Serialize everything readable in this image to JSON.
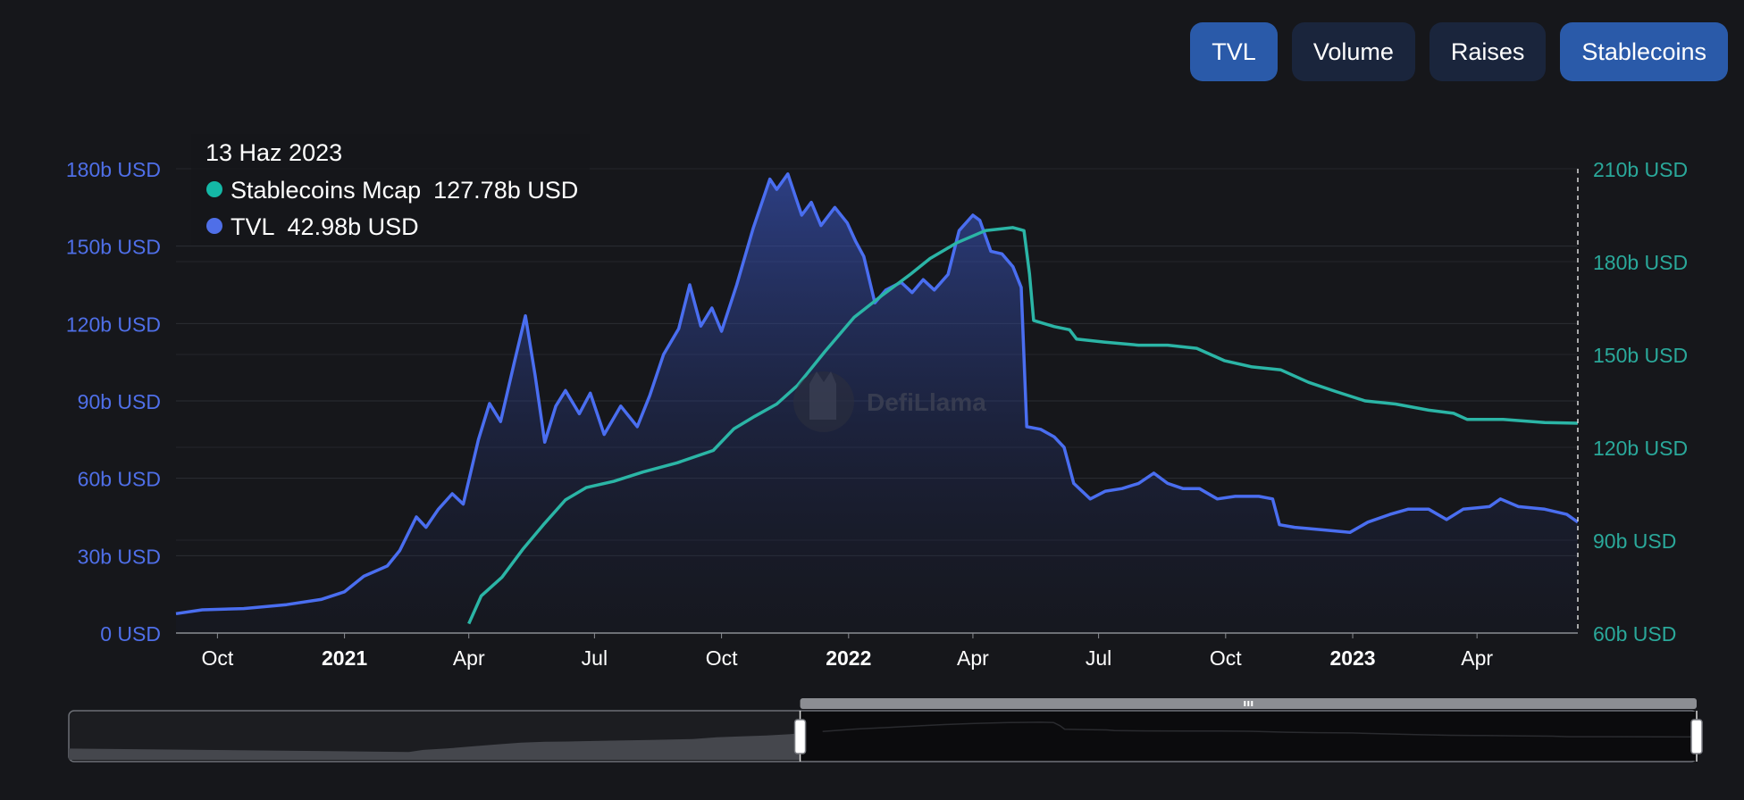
{
  "toggles": [
    {
      "label": "TVL",
      "active": true
    },
    {
      "label": "Volume",
      "active": false
    },
    {
      "label": "Raises",
      "active": false
    },
    {
      "label": "Stablecoins",
      "active": true
    }
  ],
  "watermark": "DefiLlama",
  "tooltip": {
    "date": "13 Haz 2023",
    "items": [
      {
        "name": "Stablecoins Mcap",
        "value": "127.78b USD",
        "color": "#14b8a6"
      },
      {
        "name": "TVL",
        "value": "42.98b USD",
        "color": "#4f6fe8"
      }
    ]
  },
  "colors": {
    "tvl": "#4a6ef0",
    "stablecoins": "#2bb5a6",
    "left_axis_text": "#4f6fe8",
    "right_axis_text": "#2aa89a",
    "button": "#1a253c",
    "button_active": "#2a5aa9"
  },
  "chart_data": {
    "type": "area",
    "x_range": [
      "2020-09-01",
      "2023-06-13"
    ],
    "x_ticks": [
      {
        "date": "2020-10-01",
        "label": "Oct",
        "bold": false
      },
      {
        "date": "2021-01-01",
        "label": "2021",
        "bold": true
      },
      {
        "date": "2021-04-01",
        "label": "Apr",
        "bold": false
      },
      {
        "date": "2021-07-01",
        "label": "Jul",
        "bold": false
      },
      {
        "date": "2021-10-01",
        "label": "Oct",
        "bold": false
      },
      {
        "date": "2022-01-01",
        "label": "2022",
        "bold": true
      },
      {
        "date": "2022-04-01",
        "label": "Apr",
        "bold": false
      },
      {
        "date": "2022-07-01",
        "label": "Jul",
        "bold": false
      },
      {
        "date": "2022-10-01",
        "label": "Oct",
        "bold": false
      },
      {
        "date": "2023-01-01",
        "label": "2023",
        "bold": true
      },
      {
        "date": "2023-04-01",
        "label": "Apr",
        "bold": false
      }
    ],
    "y_left": {
      "min": 0,
      "max": 180,
      "ticks": [
        0,
        30,
        60,
        90,
        120,
        150,
        180
      ],
      "tick_labels": [
        "0 USD",
        "30b USD",
        "60b USD",
        "90b USD",
        "120b USD",
        "150b USD",
        "180b USD"
      ]
    },
    "y_right": {
      "min": 60,
      "max": 210,
      "ticks": [
        60,
        90,
        120,
        150,
        180,
        210
      ],
      "tick_labels": [
        "60b USD",
        "90b USD",
        "120b USD",
        "150b USD",
        "180b USD",
        "210b USD"
      ]
    },
    "series": [
      {
        "name": "TVL",
        "axis": "left",
        "points": [
          [
            "2020-09-01",
            7.5
          ],
          [
            "2020-09-20",
            9
          ],
          [
            "2020-10-20",
            9.5
          ],
          [
            "2020-11-20",
            11
          ],
          [
            "2020-12-15",
            13
          ],
          [
            "2021-01-01",
            16
          ],
          [
            "2021-01-15",
            22
          ],
          [
            "2021-02-01",
            26
          ],
          [
            "2021-02-10",
            32
          ],
          [
            "2021-02-22",
            45
          ],
          [
            "2021-03-01",
            41
          ],
          [
            "2021-03-10",
            48
          ],
          [
            "2021-03-20",
            54
          ],
          [
            "2021-03-28",
            50
          ],
          [
            "2021-04-08",
            75
          ],
          [
            "2021-04-16",
            89
          ],
          [
            "2021-04-24",
            82
          ],
          [
            "2021-05-04",
            105
          ],
          [
            "2021-05-12",
            123
          ],
          [
            "2021-05-19",
            100
          ],
          [
            "2021-05-26",
            74
          ],
          [
            "2021-06-03",
            88
          ],
          [
            "2021-06-10",
            94
          ],
          [
            "2021-06-20",
            85
          ],
          [
            "2021-06-28",
            93
          ],
          [
            "2021-07-08",
            77
          ],
          [
            "2021-07-20",
            88
          ],
          [
            "2021-08-01",
            80
          ],
          [
            "2021-08-10",
            92
          ],
          [
            "2021-08-20",
            108
          ],
          [
            "2021-08-31",
            118
          ],
          [
            "2021-09-08",
            135
          ],
          [
            "2021-09-16",
            119
          ],
          [
            "2021-09-24",
            126
          ],
          [
            "2021-10-01",
            117
          ],
          [
            "2021-10-12",
            135
          ],
          [
            "2021-10-24",
            157
          ],
          [
            "2021-11-05",
            176
          ],
          [
            "2021-11-10",
            172
          ],
          [
            "2021-11-18",
            178
          ],
          [
            "2021-11-28",
            162
          ],
          [
            "2021-12-05",
            167
          ],
          [
            "2021-12-12",
            158
          ],
          [
            "2021-12-22",
            165
          ],
          [
            "2021-12-31",
            159
          ],
          [
            "2022-01-06",
            152
          ],
          [
            "2022-01-12",
            146
          ],
          [
            "2022-01-20",
            128
          ],
          [
            "2022-01-28",
            133
          ],
          [
            "2022-02-08",
            136
          ],
          [
            "2022-02-16",
            132
          ],
          [
            "2022-02-24",
            137
          ],
          [
            "2022-03-04",
            133
          ],
          [
            "2022-03-14",
            139
          ],
          [
            "2022-03-22",
            156
          ],
          [
            "2022-04-01",
            162
          ],
          [
            "2022-04-06",
            160
          ],
          [
            "2022-04-14",
            148
          ],
          [
            "2022-04-22",
            147
          ],
          [
            "2022-04-30",
            142
          ],
          [
            "2022-05-06",
            134
          ],
          [
            "2022-05-10",
            80
          ],
          [
            "2022-05-20",
            79
          ],
          [
            "2022-05-30",
            76
          ],
          [
            "2022-06-06",
            72
          ],
          [
            "2022-06-13",
            58
          ],
          [
            "2022-06-25",
            52
          ],
          [
            "2022-07-06",
            55
          ],
          [
            "2022-07-18",
            56
          ],
          [
            "2022-07-30",
            58
          ],
          [
            "2022-08-10",
            62
          ],
          [
            "2022-08-20",
            58
          ],
          [
            "2022-08-31",
            56
          ],
          [
            "2022-09-12",
            56
          ],
          [
            "2022-09-25",
            52
          ],
          [
            "2022-10-08",
            53
          ],
          [
            "2022-10-25",
            53
          ],
          [
            "2022-11-04",
            52
          ],
          [
            "2022-11-09",
            42
          ],
          [
            "2022-11-20",
            41
          ],
          [
            "2022-12-10",
            40
          ],
          [
            "2022-12-30",
            39
          ],
          [
            "2023-01-12",
            43
          ],
          [
            "2023-01-28",
            46
          ],
          [
            "2023-02-10",
            48
          ],
          [
            "2023-02-25",
            48
          ],
          [
            "2023-03-10",
            44
          ],
          [
            "2023-03-22",
            48
          ],
          [
            "2023-04-10",
            49
          ],
          [
            "2023-04-18",
            52
          ],
          [
            "2023-05-01",
            49
          ],
          [
            "2023-05-20",
            48
          ],
          [
            "2023-06-05",
            46
          ],
          [
            "2023-06-13",
            43
          ]
        ]
      },
      {
        "name": "Stablecoins Mcap",
        "axis": "right",
        "points": [
          [
            "2021-04-01",
            63
          ],
          [
            "2021-04-10",
            72
          ],
          [
            "2021-04-25",
            78
          ],
          [
            "2021-05-10",
            87
          ],
          [
            "2021-05-25",
            95
          ],
          [
            "2021-06-10",
            103
          ],
          [
            "2021-06-25",
            107
          ],
          [
            "2021-07-15",
            109
          ],
          [
            "2021-08-05",
            112
          ],
          [
            "2021-08-30",
            115
          ],
          [
            "2021-09-25",
            119
          ],
          [
            "2021-10-10",
            126
          ],
          [
            "2021-10-25",
            130
          ],
          [
            "2021-11-10",
            134
          ],
          [
            "2021-11-25",
            140
          ],
          [
            "2021-12-15",
            151
          ],
          [
            "2022-01-05",
            162
          ],
          [
            "2022-01-25",
            169
          ],
          [
            "2022-02-15",
            176
          ],
          [
            "2022-03-01",
            181
          ],
          [
            "2022-03-20",
            186
          ],
          [
            "2022-04-10",
            190
          ],
          [
            "2022-04-30",
            191
          ],
          [
            "2022-05-08",
            190
          ],
          [
            "2022-05-12",
            176
          ],
          [
            "2022-05-15",
            161
          ],
          [
            "2022-05-30",
            159
          ],
          [
            "2022-06-10",
            158
          ],
          [
            "2022-06-15",
            155
          ],
          [
            "2022-07-05",
            154
          ],
          [
            "2022-07-30",
            153
          ],
          [
            "2022-08-20",
            153
          ],
          [
            "2022-09-10",
            152
          ],
          [
            "2022-09-30",
            148
          ],
          [
            "2022-10-20",
            146
          ],
          [
            "2022-11-10",
            145
          ],
          [
            "2022-11-30",
            141
          ],
          [
            "2022-12-20",
            138
          ],
          [
            "2023-01-10",
            135
          ],
          [
            "2023-02-01",
            134
          ],
          [
            "2023-02-25",
            132
          ],
          [
            "2023-03-15",
            131
          ],
          [
            "2023-03-25",
            129
          ],
          [
            "2023-04-20",
            129
          ],
          [
            "2023-05-20",
            128
          ],
          [
            "2023-06-13",
            127.78
          ]
        ]
      }
    ],
    "brush": {
      "start": "2021-12-01",
      "end": "2023-06-13"
    }
  }
}
